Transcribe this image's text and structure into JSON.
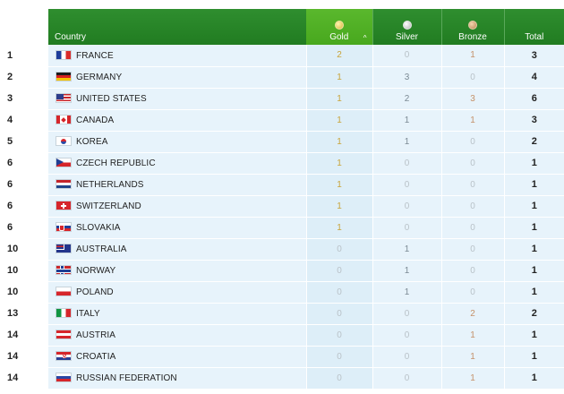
{
  "header": {
    "country": "Country",
    "gold": "Gold",
    "silver": "Silver",
    "bronze": "Bronze",
    "total": "Total",
    "sort_indicator": "^"
  },
  "rows": [
    {
      "rank": "1",
      "country": "FRANCE",
      "flag": "flag-france-icon",
      "gold": "2",
      "silver": "0",
      "bronze": "1",
      "total": "3"
    },
    {
      "rank": "2",
      "country": "GERMANY",
      "flag": "flag-germany-icon",
      "gold": "1",
      "silver": "3",
      "bronze": "0",
      "total": "4"
    },
    {
      "rank": "3",
      "country": "UNITED STATES",
      "flag": "flag-united-states-icon",
      "gold": "1",
      "silver": "2",
      "bronze": "3",
      "total": "6"
    },
    {
      "rank": "4",
      "country": "CANADA",
      "flag": "flag-canada-icon",
      "gold": "1",
      "silver": "1",
      "bronze": "1",
      "total": "3"
    },
    {
      "rank": "5",
      "country": "KOREA",
      "flag": "flag-korea-icon",
      "gold": "1",
      "silver": "1",
      "bronze": "0",
      "total": "2"
    },
    {
      "rank": "6",
      "country": "CZECH REPUBLIC",
      "flag": "flag-czech-republic-icon",
      "gold": "1",
      "silver": "0",
      "bronze": "0",
      "total": "1"
    },
    {
      "rank": "6",
      "country": "NETHERLANDS",
      "flag": "flag-netherlands-icon",
      "gold": "1",
      "silver": "0",
      "bronze": "0",
      "total": "1"
    },
    {
      "rank": "6",
      "country": "SWITZERLAND",
      "flag": "flag-switzerland-icon",
      "gold": "1",
      "silver": "0",
      "bronze": "0",
      "total": "1"
    },
    {
      "rank": "6",
      "country": "SLOVAKIA",
      "flag": "flag-slovakia-icon",
      "gold": "1",
      "silver": "0",
      "bronze": "0",
      "total": "1"
    },
    {
      "rank": "10",
      "country": "AUSTRALIA",
      "flag": "flag-australia-icon",
      "gold": "0",
      "silver": "1",
      "bronze": "0",
      "total": "1"
    },
    {
      "rank": "10",
      "country": "NORWAY",
      "flag": "flag-norway-icon",
      "gold": "0",
      "silver": "1",
      "bronze": "0",
      "total": "1"
    },
    {
      "rank": "10",
      "country": "POLAND",
      "flag": "flag-poland-icon",
      "gold": "0",
      "silver": "1",
      "bronze": "0",
      "total": "1"
    },
    {
      "rank": "13",
      "country": "ITALY",
      "flag": "flag-italy-icon",
      "gold": "0",
      "silver": "0",
      "bronze": "2",
      "total": "2"
    },
    {
      "rank": "14",
      "country": "AUSTRIA",
      "flag": "flag-austria-icon",
      "gold": "0",
      "silver": "0",
      "bronze": "1",
      "total": "1"
    },
    {
      "rank": "14",
      "country": "CROATIA",
      "flag": "flag-croatia-icon",
      "gold": "0",
      "silver": "0",
      "bronze": "1",
      "total": "1"
    },
    {
      "rank": "14",
      "country": "RUSSIAN FEDERATION",
      "flag": "flag-russian-federation-icon",
      "gold": "0",
      "silver": "0",
      "bronze": "1",
      "total": "1"
    }
  ],
  "colors": {
    "header_green": "#217c21",
    "gold_header": "#48a81e",
    "row_bg": "#e7f3fb",
    "gold_text": "#c8a43a",
    "bronze_text": "#c5916a"
  }
}
